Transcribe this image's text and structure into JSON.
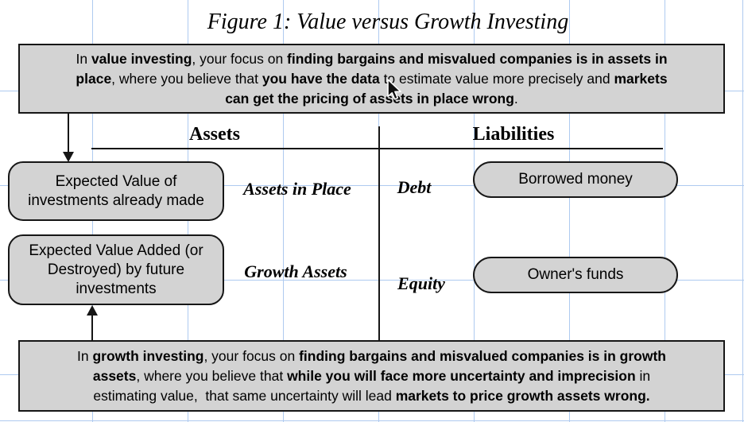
{
  "figure": {
    "title": "Figure 1: Value versus Growth Investing"
  },
  "value_note": {
    "lines": [
      [
        {
          "t": "In ",
          "b": false
        },
        {
          "t": "value investing",
          "b": true
        },
        {
          "t": ", your focus on ",
          "b": false
        },
        {
          "t": "finding bargains and misvalued companies is in assets in",
          "b": true
        }
      ],
      [
        {
          "t": "place",
          "b": true
        },
        {
          "t": ", where you believe that ",
          "b": false
        },
        {
          "t": "you have the data",
          "b": true
        },
        {
          "t": " to estimate value more precisely and ",
          "b": false
        },
        {
          "t": "markets",
          "b": true
        }
      ],
      [
        {
          "t": "can get the pricing of assets in place wrong",
          "b": true
        },
        {
          "t": ".",
          "b": false
        }
      ]
    ]
  },
  "growth_note": {
    "lines": [
      [
        {
          "t": "In ",
          "b": false
        },
        {
          "t": "growth investing",
          "b": true
        },
        {
          "t": ", your focus on ",
          "b": false
        },
        {
          "t": "finding bargains and misvalued companies is in growth",
          "b": true
        }
      ],
      [
        {
          "t": "assets",
          "b": true
        },
        {
          "t": ", where you believe that ",
          "b": false
        },
        {
          "t": "while you will face more uncertainty and imprecision",
          "b": true
        },
        {
          "t": " in",
          "b": false
        }
      ],
      [
        {
          "t": "estimating value,  that same uncertainty will lead ",
          "b": false
        },
        {
          "t": "markets to price growth assets wrong.",
          "b": true
        }
      ]
    ]
  },
  "balance_sheet": {
    "assets_header": "Assets",
    "liabilities_header": "Liabilities",
    "assets_in_place": {
      "box_lines": [
        "Expected Value of",
        "investments already made"
      ],
      "label": "Assets in Place"
    },
    "growth_assets": {
      "box_lines": [
        "Expected Value Added (or",
        "Destroyed) by future",
        "investments"
      ],
      "label": "Growth Assets"
    },
    "debt": {
      "label": "Debt",
      "box_text": "Borrowed money"
    },
    "equity": {
      "label": "Equity",
      "box_text": "Owner's funds"
    }
  },
  "cursor": {
    "icon": "arrow-pointer"
  },
  "colors": {
    "grid_line": "#aecaf0",
    "box_fill": "#d3d3d3",
    "box_border": "#161616",
    "text": "#000000"
  }
}
